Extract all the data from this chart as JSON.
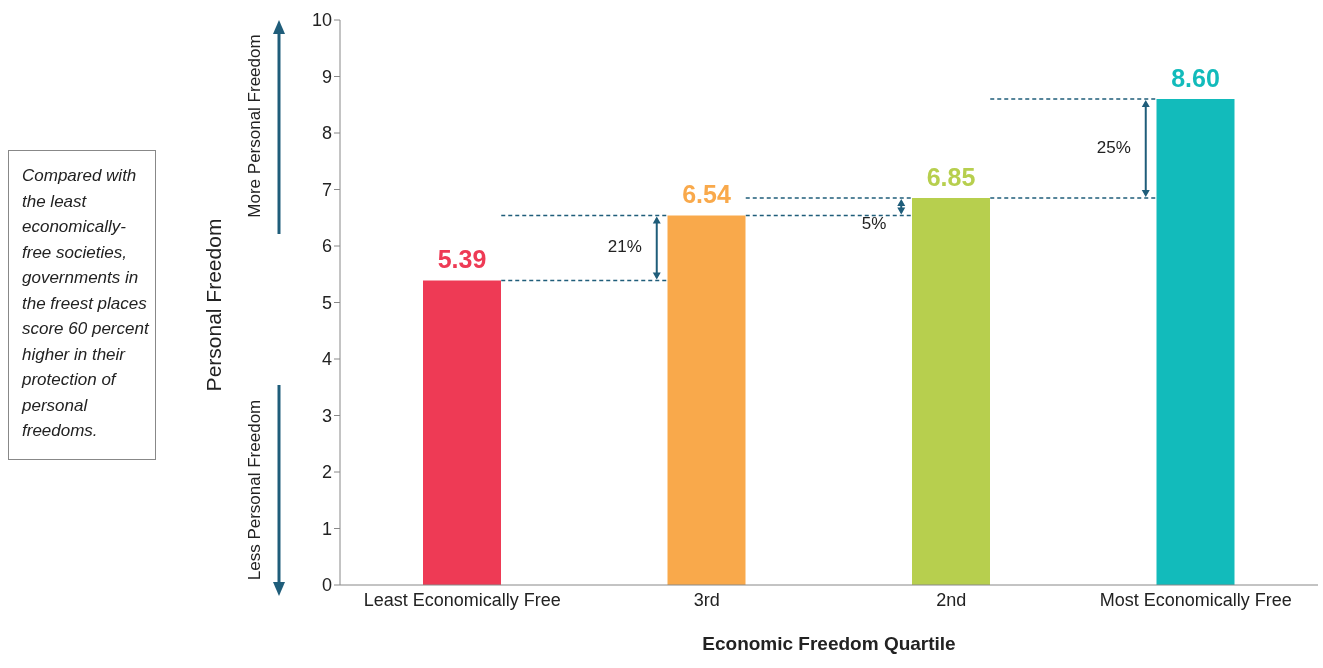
{
  "chart_data": {
    "type": "bar",
    "xlabel": "Economic Freedom Quartile",
    "ylabel": "Personal Freedom",
    "categories": [
      "Least Economically Free",
      "3rd",
      "2nd",
      "Most Economically Free"
    ],
    "values": [
      5.39,
      6.54,
      6.85,
      8.6
    ],
    "colors": [
      "#ee3a55",
      "#f9a94b",
      "#b7cf4e",
      "#12bbbb"
    ],
    "value_labels": [
      "5.39",
      "6.54",
      "6.85",
      "8.60"
    ],
    "ylim": [
      0,
      10
    ],
    "yticks": [
      0,
      1,
      2,
      3,
      4,
      5,
      6,
      7,
      8,
      9,
      10
    ],
    "grid": false,
    "legend": false,
    "annotations": [
      "Compared with the least economically-free societies, governments in the freest places score 60 percent higher in their protection of personal freedoms.",
      "More Personal Freedom",
      "Less Personal Freedom",
      "21%",
      "5%",
      "25%"
    ]
  }
}
